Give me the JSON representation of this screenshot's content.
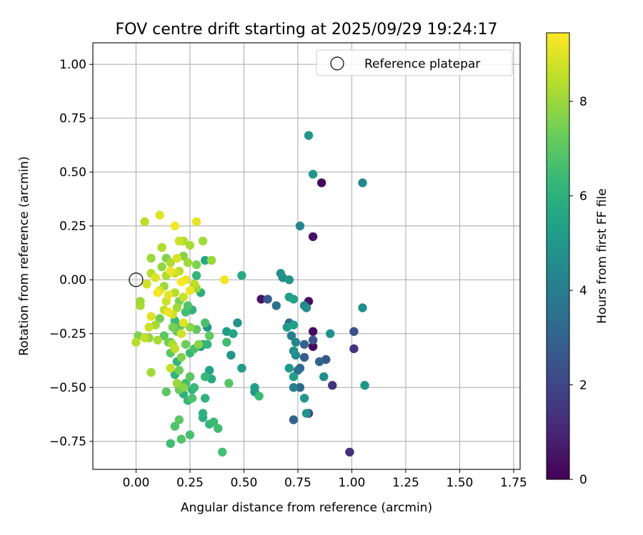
{
  "chart_data": {
    "type": "scatter",
    "title": "FOV centre drift starting at 2025/09/29 19:24:17",
    "xlabel": "Angular distance from reference (arcmin)",
    "ylabel": "Rotation from reference (arcmin)",
    "xlim": [
      -0.2,
      1.78
    ],
    "ylim": [
      -0.88,
      1.1
    ],
    "xticks": [
      0.0,
      0.25,
      0.5,
      0.75,
      1.0,
      1.25,
      1.5,
      1.75
    ],
    "xtick_labels": [
      "0.00",
      "0.25",
      "0.50",
      "0.75",
      "1.00",
      "1.25",
      "1.50",
      "1.75"
    ],
    "yticks": [
      -0.75,
      -0.5,
      -0.25,
      0.0,
      0.25,
      0.5,
      0.75,
      1.0
    ],
    "ytick_labels": [
      "−0.75",
      "−0.50",
      "−0.25",
      "0.00",
      "0.25",
      "0.50",
      "0.75",
      "1.00"
    ],
    "grid": true,
    "legend": {
      "position": "top-right",
      "label": "Reference platepar"
    },
    "reference_point": {
      "x": 0.0,
      "y": 0.0
    },
    "colorbar": {
      "label": "Hours from first FF file",
      "min": 0,
      "max": 9.45,
      "ticks": [
        0,
        2,
        4,
        6,
        8
      ],
      "tick_labels": [
        "0",
        "2",
        "4",
        "6",
        "8"
      ],
      "colormap": [
        "#440154",
        "#482878",
        "#3e4989",
        "#31688e",
        "#26828e",
        "#1f9e89",
        "#35b779",
        "#6ece58",
        "#b5de2b",
        "#fde725"
      ]
    },
    "points": [
      [
        0.8,
        0.67,
        4.9
      ],
      [
        0.82,
        0.49,
        5.0
      ],
      [
        0.86,
        0.45,
        0.3
      ],
      [
        1.05,
        0.45,
        4.4
      ],
      [
        0.76,
        0.25,
        4.3
      ],
      [
        0.82,
        0.2,
        0.4
      ],
      [
        0.67,
        0.03,
        4.8
      ],
      [
        0.68,
        0.01,
        4.6
      ],
      [
        0.71,
        0.0,
        4.9
      ],
      [
        0.58,
        -0.09,
        0.5
      ],
      [
        0.61,
        -0.09,
        2.6
      ],
      [
        0.65,
        -0.12,
        3.6
      ],
      [
        0.71,
        -0.08,
        5.3
      ],
      [
        0.73,
        -0.09,
        5.4
      ],
      [
        0.78,
        -0.12,
        4.4
      ],
      [
        0.8,
        -0.1,
        0.4
      ],
      [
        0.79,
        -0.13,
        4.7
      ],
      [
        0.71,
        -0.2,
        3.4
      ],
      [
        0.7,
        -0.22,
        5.1
      ],
      [
        0.73,
        -0.21,
        5.3
      ],
      [
        0.72,
        -0.26,
        3.9
      ],
      [
        0.74,
        -0.29,
        4.3
      ],
      [
        0.78,
        -0.3,
        3.0
      ],
      [
        0.82,
        -0.24,
        0.3
      ],
      [
        0.82,
        -0.28,
        2.5
      ],
      [
        0.82,
        -0.31,
        0.2
      ],
      [
        0.9,
        -0.25,
        4.8
      ],
      [
        1.01,
        -0.24,
        2.4
      ],
      [
        1.01,
        -0.32,
        1.4
      ],
      [
        1.05,
        -0.13,
        4.6
      ],
      [
        0.73,
        -0.33,
        4.8
      ],
      [
        0.74,
        -0.35,
        4.5
      ],
      [
        0.75,
        -0.42,
        3.4
      ],
      [
        0.78,
        -0.36,
        2.8
      ],
      [
        0.76,
        -0.41,
        3.1
      ],
      [
        0.85,
        -0.38,
        3.0
      ],
      [
        0.88,
        -0.37,
        2.6
      ],
      [
        0.87,
        -0.45,
        4.7
      ],
      [
        0.91,
        -0.49,
        1.4
      ],
      [
        0.71,
        -0.41,
        5.0
      ],
      [
        0.73,
        -0.45,
        5.3
      ],
      [
        0.73,
        -0.5,
        4.1
      ],
      [
        0.76,
        -0.5,
        3.2
      ],
      [
        0.78,
        -0.55,
        5.0
      ],
      [
        0.8,
        -0.62,
        1.8
      ],
      [
        0.79,
        -0.62,
        4.9
      ],
      [
        0.73,
        -0.65,
        3.0
      ],
      [
        0.99,
        -0.8,
        1.3
      ],
      [
        1.06,
        -0.49,
        4.9
      ],
      [
        0.49,
        0.02,
        5.7
      ],
      [
        0.47,
        -0.2,
        4.8
      ],
      [
        0.42,
        -0.24,
        5.2
      ],
      [
        0.45,
        -0.25,
        5.5
      ],
      [
        0.44,
        -0.35,
        5.0
      ],
      [
        0.49,
        -0.41,
        5.2
      ],
      [
        0.55,
        -0.5,
        5.3
      ],
      [
        0.55,
        -0.52,
        4.9
      ],
      [
        0.57,
        -0.54,
        6.4
      ],
      [
        0.43,
        -0.48,
        6.9
      ],
      [
        0.42,
        -0.29,
        6.5
      ],
      [
        0.4,
        -0.8,
        6.6
      ],
      [
        0.38,
        -0.69,
        6.5
      ],
      [
        0.36,
        -0.66,
        6.4
      ],
      [
        0.34,
        -0.67,
        6.2
      ],
      [
        0.31,
        -0.64,
        5.9
      ],
      [
        0.31,
        -0.62,
        6.0
      ],
      [
        0.32,
        -0.55,
        6.1
      ],
      [
        0.25,
        -0.72,
        6.6
      ],
      [
        0.21,
        -0.74,
        6.8
      ],
      [
        0.16,
        -0.76,
        6.5
      ],
      [
        0.18,
        -0.68,
        6.8
      ],
      [
        0.2,
        -0.65,
        7.0
      ],
      [
        0.24,
        -0.56,
        6.3
      ],
      [
        0.22,
        -0.53,
        6.0
      ],
      [
        0.2,
        -0.51,
        7.2
      ],
      [
        0.23,
        -0.48,
        6.6
      ],
      [
        0.27,
        -0.5,
        6.4
      ],
      [
        0.25,
        -0.45,
        5.9
      ],
      [
        0.32,
        -0.45,
        6.3
      ],
      [
        0.35,
        -0.46,
        5.7
      ],
      [
        0.34,
        -0.42,
        5.4
      ],
      [
        0.33,
        -0.3,
        6.2
      ],
      [
        0.31,
        -0.3,
        5.6
      ],
      [
        0.3,
        -0.31,
        5.2
      ],
      [
        0.33,
        -0.22,
        5.0
      ],
      [
        0.32,
        -0.2,
        6.7
      ],
      [
        0.34,
        -0.26,
        7.1
      ],
      [
        0.3,
        -0.06,
        5.9
      ],
      [
        0.28,
        0.02,
        6.2
      ],
      [
        0.32,
        0.09,
        5.6
      ],
      [
        0.35,
        0.09,
        8.0
      ],
      [
        0.28,
        0.07,
        7.6
      ],
      [
        0.25,
        0.16,
        8.2
      ],
      [
        0.31,
        0.18,
        8.1
      ],
      [
        0.28,
        0.27,
        9.1
      ],
      [
        0.22,
        0.18,
        8.3
      ],
      [
        0.2,
        0.18,
        8.7
      ],
      [
        0.18,
        0.25,
        9.3
      ],
      [
        0.11,
        0.3,
        9.0
      ],
      [
        0.04,
        0.27,
        8.5
      ],
      [
        0.07,
        0.1,
        8.0
      ],
      [
        0.12,
        0.15,
        8.3
      ],
      [
        0.14,
        0.1,
        7.6
      ],
      [
        0.16,
        0.08,
        8.3
      ],
      [
        0.19,
        0.1,
        8.9
      ],
      [
        0.22,
        0.11,
        7.7
      ],
      [
        0.24,
        0.08,
        8.1
      ],
      [
        0.07,
        0.03,
        8.4
      ],
      [
        0.2,
        0.04,
        8.5
      ],
      [
        0.23,
        0.0,
        9.2
      ],
      [
        0.27,
        -0.02,
        8.5
      ],
      [
        0.28,
        -0.04,
        8.0
      ],
      [
        0.41,
        0.0,
        9.3
      ],
      [
        0.21,
        -0.01,
        9.4
      ],
      [
        0.25,
        -0.05,
        9.2
      ],
      [
        0.22,
        -0.08,
        8.7
      ],
      [
        0.24,
        -0.12,
        6.8
      ],
      [
        0.26,
        -0.14,
        6.0
      ],
      [
        0.23,
        -0.15,
        6.5
      ],
      [
        0.25,
        -0.22,
        7.8
      ],
      [
        0.22,
        -0.2,
        9.0
      ],
      [
        0.21,
        -0.25,
        8.8
      ],
      [
        0.19,
        -0.24,
        7.2
      ],
      [
        0.17,
        -0.22,
        7.5
      ],
      [
        0.23,
        -0.3,
        7.3
      ],
      [
        0.28,
        -0.23,
        7.1
      ],
      [
        0.27,
        -0.32,
        6.7
      ],
      [
        0.29,
        -0.3,
        7.8
      ],
      [
        0.25,
        -0.34,
        6.4
      ],
      [
        0.21,
        -0.36,
        7.6
      ],
      [
        0.19,
        -0.38,
        6.2
      ],
      [
        0.18,
        -0.44,
        6.1
      ],
      [
        0.16,
        -0.41,
        8.6
      ],
      [
        0.2,
        -0.42,
        7.3
      ],
      [
        0.14,
        -0.52,
        7.0
      ],
      [
        0.07,
        -0.43,
        8.1
      ],
      [
        0.17,
        -0.3,
        8.3
      ],
      [
        0.16,
        -0.29,
        6.9
      ],
      [
        0.15,
        -0.29,
        7.4
      ],
      [
        0.18,
        -0.32,
        8.5
      ],
      [
        0.13,
        -0.26,
        7.0
      ],
      [
        0.1,
        -0.28,
        8.2
      ],
      [
        0.06,
        -0.27,
        7.9
      ],
      [
        0.04,
        -0.27,
        8.6
      ],
      [
        0.01,
        -0.26,
        7.6
      ],
      [
        0.0,
        -0.29,
        8.4
      ],
      [
        0.06,
        -0.22,
        8.7
      ],
      [
        0.07,
        -0.17,
        9.0
      ],
      [
        0.09,
        -0.21,
        8.1
      ],
      [
        0.11,
        -0.18,
        7.4
      ],
      [
        0.13,
        -0.14,
        8.6
      ],
      [
        0.15,
        -0.15,
        9.2
      ],
      [
        0.17,
        -0.16,
        8.8
      ],
      [
        0.19,
        -0.13,
        8.1
      ],
      [
        0.2,
        -0.1,
        7.5
      ],
      [
        0.18,
        -0.06,
        8.4
      ],
      [
        0.15,
        -0.07,
        9.1
      ],
      [
        0.13,
        -0.03,
        8.0
      ],
      [
        0.11,
        -0.05,
        8.9
      ],
      [
        0.1,
        -0.06,
        9.3
      ],
      [
        0.05,
        -0.02,
        8.8
      ],
      [
        0.02,
        -0.1,
        8.0
      ],
      [
        0.02,
        -0.12,
        8.2
      ],
      [
        0.14,
        0.02,
        8.3
      ],
      [
        0.16,
        0.04,
        9.2
      ],
      [
        0.18,
        0.03,
        8.8
      ],
      [
        0.12,
        0.06,
        7.9
      ],
      [
        0.09,
        0.01,
        9.0
      ],
      [
        0.14,
        -0.1,
        8.7
      ],
      [
        0.18,
        -0.19,
        6.4
      ],
      [
        0.21,
        -0.21,
        6.8
      ],
      [
        0.16,
        -0.34,
        7.0
      ],
      [
        0.22,
        -0.5,
        7.7
      ],
      [
        0.25,
        -0.45,
        7.0
      ],
      [
        0.26,
        -0.55,
        6.8
      ],
      [
        0.19,
        -0.48,
        8.0
      ],
      [
        0.26,
        -0.51,
        6.1
      ]
    ]
  }
}
